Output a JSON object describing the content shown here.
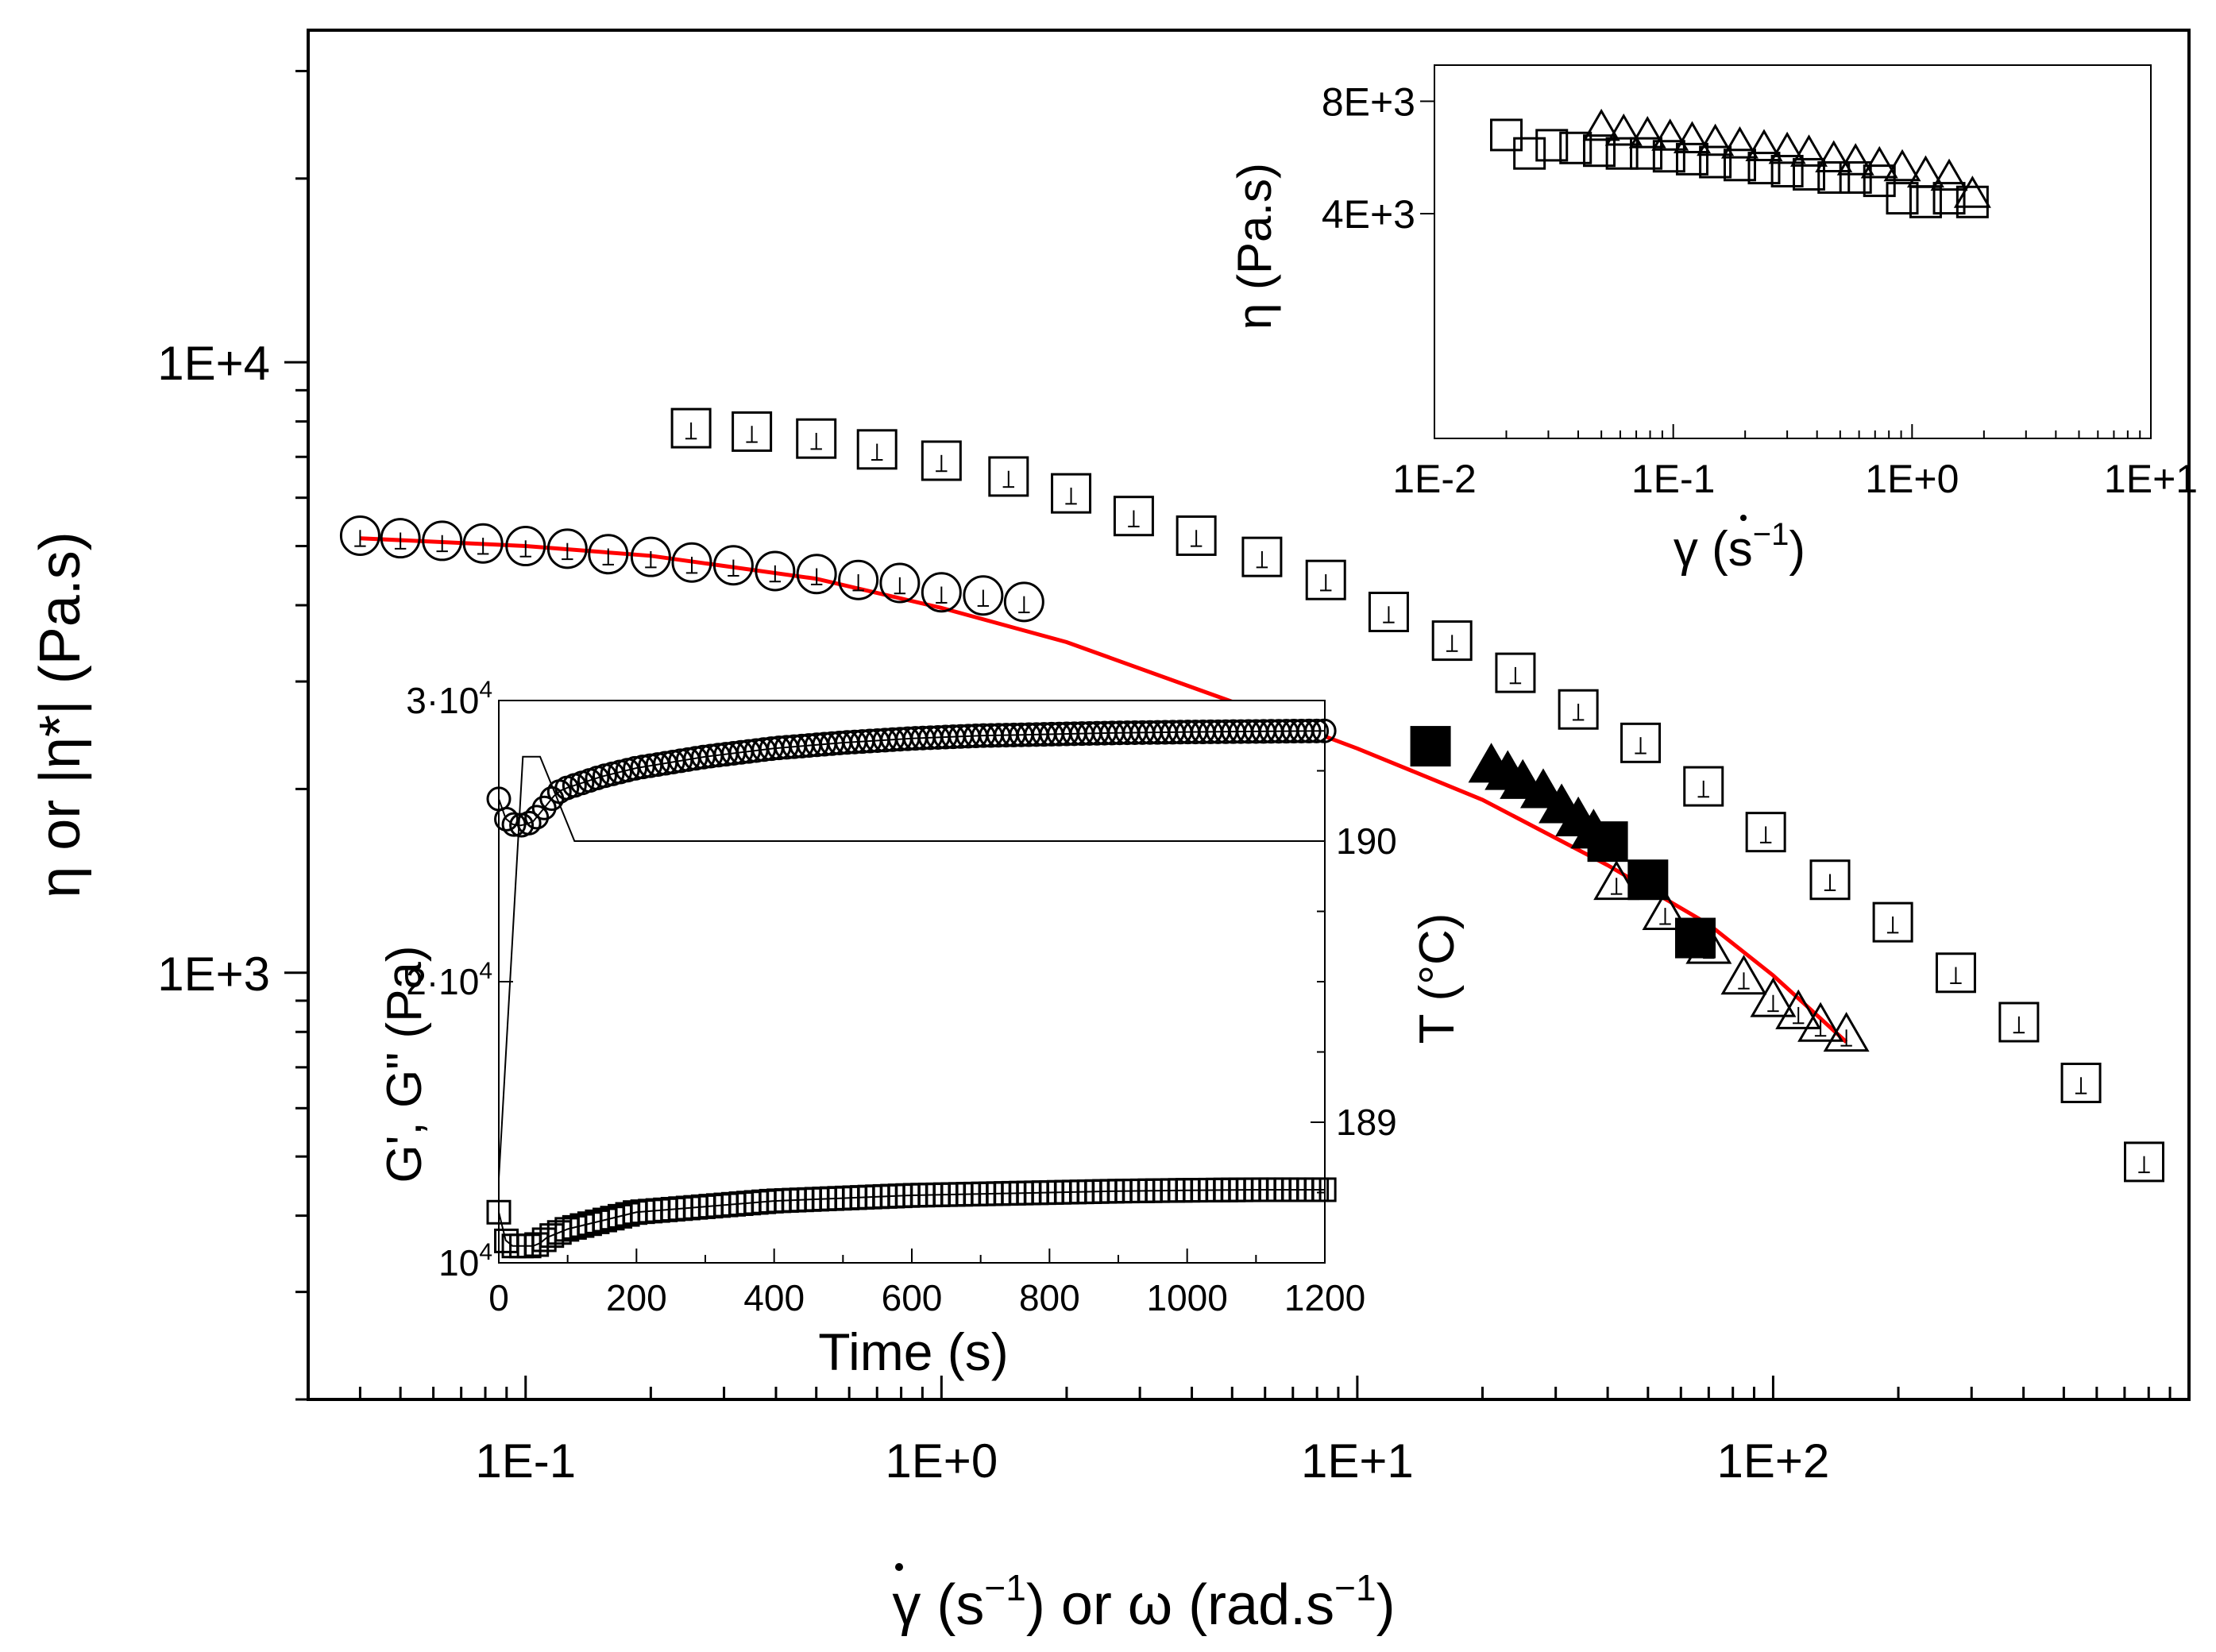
{
  "chart_data": [
    {
      "type": "scatter",
      "id": "main",
      "xscale": "log",
      "yscale": "log",
      "xlim": [
        0.03,
        1000
      ],
      "ylim": [
        200,
        35000
      ],
      "xticks": [
        {
          "value": 0.1,
          "label": "1E-1"
        },
        {
          "value": 1,
          "label": "1E+0"
        },
        {
          "value": 10,
          "label": "1E+1"
        },
        {
          "value": 100,
          "label": "1E+2"
        }
      ],
      "yticks": [
        {
          "value": 1000,
          "label": "1E+3"
        },
        {
          "value": 10000,
          "label": "1E+4"
        }
      ],
      "xlabel_parts": {
        "gamma": "γ",
        "unit_open": " (s",
        "exp": "−1",
        "mid": ") or ω (rad.s",
        "exp2": "−1",
        "close": ")"
      },
      "ylabel": "η or |η*| (Pa.s)",
      "series": [
        {
          "name": "circles-open",
          "marker": "circle",
          "filled": false,
          "x": [
            0.04,
            0.05,
            0.063,
            0.079,
            0.1,
            0.126,
            0.158,
            0.2,
            0.251,
            0.316,
            0.398,
            0.501,
            0.631,
            0.794,
            1.0,
            1.26,
            1.58
          ],
          "y": [
            5200,
            5150,
            5100,
            5050,
            5000,
            4950,
            4850,
            4800,
            4700,
            4650,
            4550,
            4500,
            4400,
            4350,
            4200,
            4150,
            4050
          ]
        },
        {
          "name": "squares-open",
          "marker": "square",
          "filled": false,
          "x": [
            0.25,
            0.35,
            0.5,
            0.7,
            1.0,
            1.45,
            2.05,
            2.9,
            4.1,
            5.9,
            8.4,
            11.9,
            16.9,
            24,
            34,
            48,
            68,
            96,
            137,
            194,
            275,
            390,
            550,
            780
          ],
          "y": [
            7800,
            7700,
            7500,
            7200,
            6900,
            6500,
            6100,
            5600,
            5200,
            4800,
            4400,
            3900,
            3500,
            3100,
            2700,
            2380,
            2020,
            1700,
            1420,
            1210,
            1000,
            830,
            660,
            490
          ]
        },
        {
          "name": "triangles-open",
          "marker": "triangle",
          "filled": false,
          "x": [
            42,
            55,
            70,
            85,
            100,
            115,
            130,
            150
          ],
          "y": [
            1400,
            1250,
            1100,
            980,
            900,
            860,
            820,
            790
          ]
        },
        {
          "name": "triangles-filled",
          "marker": "triangle",
          "filled": true,
          "x": [
            21,
            23,
            25,
            28,
            31,
            34,
            37
          ],
          "y": [
            2180,
            2120,
            2050,
            1980,
            1870,
            1780,
            1700
          ]
        },
        {
          "name": "squares-filled",
          "marker": "square",
          "filled": true,
          "x": [
            15,
            40,
            50,
            65
          ],
          "y": [
            2350,
            1640,
            1420,
            1140
          ]
        }
      ],
      "fit": {
        "name": "fit-curve",
        "color": "#ff0000",
        "x": [
          0.04,
          0.1,
          0.2,
          0.5,
          1.0,
          2.0,
          5.0,
          10,
          20,
          40,
          70,
          100,
          150
        ],
        "y": [
          5150,
          5000,
          4820,
          4420,
          3960,
          3480,
          2780,
          2330,
          1920,
          1500,
          1200,
          990,
          770
        ]
      }
    },
    {
      "type": "scatter",
      "id": "inset-top",
      "xscale": "log",
      "yscale": "log",
      "xlim": [
        0.01,
        10
      ],
      "ylim": [
        1000,
        10000
      ],
      "xticks": [
        {
          "value": 0.01,
          "label": "1E-2"
        },
        {
          "value": 0.1,
          "label": "1E-1"
        },
        {
          "value": 1,
          "label": "1E+0"
        },
        {
          "value": 10,
          "label": "1E+1"
        }
      ],
      "yticks": [
        {
          "value": 4000,
          "label": "4E+3"
        },
        {
          "value": 8000,
          "label": "8E+3"
        }
      ],
      "xlabel_parts": {
        "gamma": "γ",
        "unit_open": " (s",
        "exp": "−1",
        "close": ")"
      },
      "ylabel": "η (Pa.s)",
      "series": [
        {
          "name": "inset-squares-open",
          "marker": "square",
          "filled": false,
          "x": [
            0.02,
            0.025,
            0.031,
            0.039,
            0.049,
            0.061,
            0.077,
            0.096,
            0.12,
            0.15,
            0.19,
            0.24,
            0.3,
            0.37,
            0.47,
            0.58,
            0.73,
            0.91,
            1.14,
            1.43,
            1.79
          ],
          "y": [
            6500,
            5800,
            6100,
            6000,
            5900,
            5800,
            5800,
            5700,
            5600,
            5500,
            5400,
            5300,
            5200,
            5100,
            5000,
            5000,
            4900,
            4400,
            4300,
            4400,
            4300
          ]
        },
        {
          "name": "inset-triangles-open",
          "marker": "triangle",
          "filled": false,
          "x": [
            0.05,
            0.062,
            0.078,
            0.097,
            0.12,
            0.15,
            0.19,
            0.24,
            0.3,
            0.37,
            0.47,
            0.58,
            0.73,
            0.91,
            1.14,
            1.43,
            1.79
          ],
          "y": [
            6800,
            6600,
            6500,
            6400,
            6300,
            6200,
            6100,
            6000,
            5900,
            5800,
            5600,
            5500,
            5400,
            5300,
            5100,
            5000,
            4500
          ]
        }
      ]
    },
    {
      "type": "line",
      "id": "inset-bottom",
      "xlim": [
        0,
        1200
      ],
      "ylim": [
        10000,
        30000
      ],
      "y2lim": [
        188.5,
        190.5
      ],
      "xticks": [
        {
          "value": 0,
          "label": "0"
        },
        {
          "value": 200,
          "label": "200"
        },
        {
          "value": 400,
          "label": "400"
        },
        {
          "value": 600,
          "label": "600"
        },
        {
          "value": 800,
          "label": "800"
        },
        {
          "value": 1000,
          "label": "1000"
        },
        {
          "value": 1200,
          "label": "1200"
        }
      ],
      "yticks": [
        {
          "value": 10000,
          "base": "10",
          "exp": "4"
        },
        {
          "value": 20000,
          "base": "2·10",
          "exp": "4"
        },
        {
          "value": 30000,
          "base": "3·10",
          "exp": "4"
        }
      ],
      "y2ticks": [
        {
          "value": 189,
          "label": "189"
        },
        {
          "value": 190,
          "label": "190"
        }
      ],
      "xlabel": "Time (s)",
      "ylabel": "G', G\" (Pa)",
      "y2label": "T (°C)",
      "series": [
        {
          "name": "G-prime-circles",
          "marker": "circle",
          "filled": false,
          "points": [
            [
              0,
              26500
            ],
            [
              10,
              25800
            ],
            [
              20,
              25600
            ],
            [
              30,
              25550
            ],
            [
              40,
              25600
            ],
            [
              50,
              25700
            ],
            [
              60,
              26000
            ],
            [
              70,
              26300
            ],
            [
              80,
              26600
            ],
            [
              90,
              26800
            ],
            [
              100,
              26900
            ],
            [
              150,
              27300
            ],
            [
              200,
              27600
            ],
            [
              300,
              28000
            ],
            [
              400,
              28300
            ],
            [
              500,
              28500
            ],
            [
              600,
              28650
            ],
            [
              700,
              28750
            ],
            [
              800,
              28800
            ],
            [
              900,
              28850
            ],
            [
              1000,
              28880
            ],
            [
              1100,
              28900
            ],
            [
              1200,
              28920
            ]
          ]
        },
        {
          "name": "G-double-prime-squares",
          "marker": "square",
          "filled": false,
          "points": [
            [
              0,
              11800
            ],
            [
              10,
              10800
            ],
            [
              20,
              10600
            ],
            [
              30,
              10600
            ],
            [
              40,
              10600
            ],
            [
              50,
              10600
            ],
            [
              60,
              10700
            ],
            [
              70,
              10900
            ],
            [
              80,
              11000
            ],
            [
              90,
              11100
            ],
            [
              100,
              11200
            ],
            [
              150,
              11500
            ],
            [
              200,
              11800
            ],
            [
              300,
              12000
            ],
            [
              400,
              12200
            ],
            [
              500,
              12300
            ],
            [
              600,
              12400
            ],
            [
              700,
              12450
            ],
            [
              800,
              12500
            ],
            [
              900,
              12550
            ],
            [
              1000,
              12580
            ],
            [
              1100,
              12600
            ],
            [
              1200,
              12600
            ]
          ]
        },
        {
          "name": "temperature-line",
          "axis": "y2",
          "marker": "none",
          "points": [
            [
              0,
              188.8
            ],
            [
              35,
              190.3
            ],
            [
              60,
              190.3
            ],
            [
              110,
              190.0
            ],
            [
              1200,
              190.0
            ]
          ]
        }
      ]
    }
  ]
}
